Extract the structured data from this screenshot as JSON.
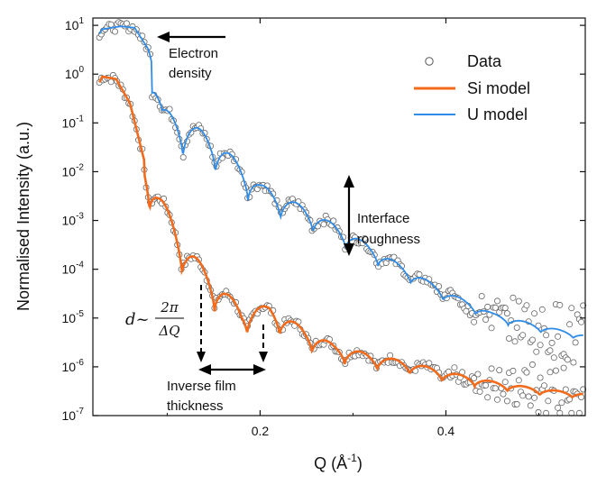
{
  "chart_data": {
    "type": "scatter",
    "title": "",
    "xlabel": "Q (Å",
    "xlabel_sup": "-1",
    "xlabel_close": ")",
    "ylabel": "Normalised Intensity (a.u.)",
    "xlim": [
      0.02,
      0.55
    ],
    "ylim_log10": [
      -7,
      1.15
    ],
    "yscale": "log",
    "x_ticks": [
      0.2,
      0.4
    ],
    "x_tick_labels": [
      "0.2",
      "0.4"
    ],
    "y_ticks_exp": [
      1,
      0,
      -1,
      -2,
      -3,
      -4,
      -5,
      -6,
      -7
    ],
    "y_tick_base": "10",
    "y_tick_exps": [
      "1",
      "0",
      "-1",
      "-2",
      "-3",
      "-4",
      "-5",
      "-6",
      "-7"
    ],
    "legend": {
      "position": "top-right",
      "entries": [
        {
          "label": "Data",
          "style": "open-circle",
          "color": "#555555"
        },
        {
          "label": "Si model",
          "style": "line",
          "color": "#f26b1d"
        },
        {
          "label": "U model",
          "style": "line",
          "color": "#2f8ce8"
        }
      ]
    },
    "series": [
      {
        "name": "U model",
        "color": "#2f8ce8",
        "offset_log10": 1,
        "critical_q": 0.068,
        "period": 0.035,
        "phase_q": 0.0995,
        "oscillation_amplitude": 1.45,
        "envelope_q": [
          0.02,
          0.03,
          0.05,
          0.065,
          0.08,
          0.095,
          0.12,
          0.15,
          0.2,
          0.25,
          0.3,
          0.35,
          0.4,
          0.45,
          0.5,
          0.55
        ],
        "envelope_log10": [
          0.6,
          0.92,
          0.98,
          0.95,
          0.5,
          -0.7,
          -0.95,
          -1.3,
          -2.25,
          -2.75,
          -3.3,
          -3.9,
          -4.45,
          -4.9,
          -5.15,
          -5.35
        ]
      },
      {
        "name": "Si model",
        "color": "#f26b1d",
        "offset_log10": 0,
        "critical_q": 0.06,
        "period": 0.035,
        "phase_q": 0.0985,
        "oscillation_amplitude": 1.35,
        "envelope_q": [
          0.02,
          0.03,
          0.045,
          0.06,
          0.075,
          0.09,
          0.12,
          0.15,
          0.18,
          0.21,
          0.25,
          0.28,
          0.32,
          0.36,
          0.4,
          0.45,
          0.5,
          0.55
        ],
        "envelope_log10": [
          -0.45,
          -0.05,
          -0.1,
          -0.6,
          -1.75,
          -2.4,
          -3.5,
          -4.2,
          -4.8,
          -4.75,
          -5.25,
          -5.55,
          -5.75,
          -5.9,
          -6.1,
          -6.3,
          -6.45,
          -6.55
        ]
      }
    ],
    "annotations": [
      {
        "text_lines": [
          "Electron",
          "density"
        ],
        "kind": "arrow-left"
      },
      {
        "text_lines": [
          "Interface",
          "roughness"
        ],
        "kind": "double-arrow-vertical"
      },
      {
        "text_lines": [
          "Inverse film",
          "thickness"
        ],
        "kind": "double-arrow-horizontal"
      }
    ],
    "formula": {
      "lhs": "d",
      "sim": "~",
      "numerator": "2π",
      "denominator": "ΔQ"
    }
  }
}
